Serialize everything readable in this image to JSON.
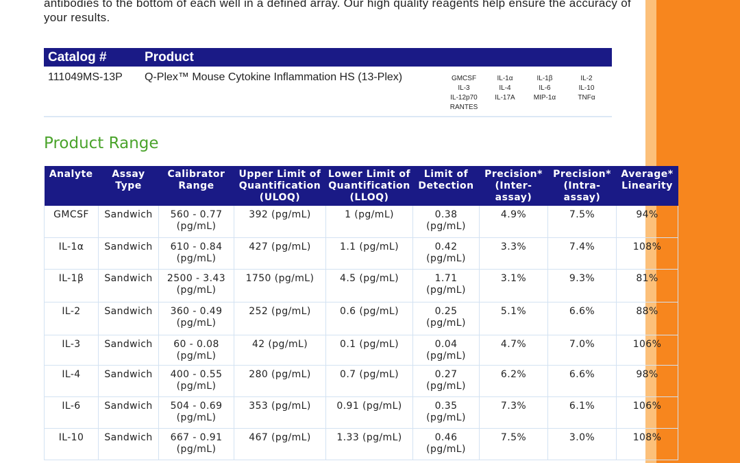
{
  "intro": {
    "text": "antibodies to the bottom of each well in a defined array. Our high quality reagents help ensure the accuracy of your results."
  },
  "catalog": {
    "header_catalog": "Catalog #",
    "header_product": "Product",
    "number": "111049MS-13P",
    "product": "Q-Plex™ Mouse Cytokine Inflammation HS (13-Plex)",
    "analyte_columns": [
      [
        "GMCSF",
        "IL-3",
        "IL-12p70",
        "RANTES"
      ],
      [
        "IL-1α",
        "IL-4",
        "IL-17A"
      ],
      [
        "IL-1β",
        "IL-6",
        "MIP-1α"
      ],
      [
        "IL-2",
        "IL-10",
        "TNFα"
      ]
    ]
  },
  "section_title": "Product Range",
  "range_table": {
    "headers": [
      "Analyte",
      "Assay Type",
      "Calibrator Range",
      "Upper Limit of Quantification (ULOQ)",
      "Lower Limit of Quantification (LLOQ)",
      "Limit of Detection",
      "Precision* (Inter-assay)",
      "Precision* (Intra-assay)",
      "Average* Linearity"
    ],
    "rows": [
      [
        "GMCSF",
        "Sandwich",
        "560 - 0.77 (pg/mL)",
        "392 (pg/mL)",
        "1 (pg/mL)",
        "0.38 (pg/mL)",
        "4.9%",
        "7.5%",
        "94%"
      ],
      [
        "IL-1α",
        "Sandwich",
        "610 - 0.84 (pg/mL)",
        "427 (pg/mL)",
        "1.1 (pg/mL)",
        "0.42 (pg/mL)",
        "3.3%",
        "7.4%",
        "108%"
      ],
      [
        "IL-1β",
        "Sandwich",
        "2500 - 3.43 (pg/mL)",
        "1750 (pg/mL)",
        "4.5 (pg/mL)",
        "1.71 (pg/mL)",
        "3.1%",
        "9.3%",
        "81%"
      ],
      [
        "IL-2",
        "Sandwich",
        "360 - 0.49 (pg/mL)",
        "252 (pg/mL)",
        "0.6 (pg/mL)",
        "0.25 (pg/mL)",
        "5.1%",
        "6.6%",
        "88%"
      ],
      [
        "IL-3",
        "Sandwich",
        "60 - 0.08 (pg/mL)",
        "42 (pg/mL)",
        "0.1 (pg/mL)",
        "0.04 (pg/mL)",
        "4.7%",
        "7.0%",
        "106%"
      ],
      [
        "IL-4",
        "Sandwich",
        "400 - 0.55 (pg/mL)",
        "280 (pg/mL)",
        "0.7 (pg/mL)",
        "0.27 (pg/mL)",
        "6.2%",
        "6.6%",
        "98%"
      ],
      [
        "IL-6",
        "Sandwich",
        "504 - 0.69 (pg/mL)",
        "353 (pg/mL)",
        "0.91 (pg/mL)",
        "0.35 (pg/mL)",
        "7.3%",
        "6.1%",
        "106%"
      ],
      [
        "IL-10",
        "Sandwich",
        "667 - 0.91 (pg/mL)",
        "467 (pg/mL)",
        "1.33 (pg/mL)",
        "0.46 (pg/mL)",
        "7.5%",
        "3.0%",
        "108%"
      ]
    ]
  },
  "colors": {
    "header_blue": "#1a1a86",
    "title_green": "#4aa32b",
    "accent_orange": "#f7861e"
  }
}
